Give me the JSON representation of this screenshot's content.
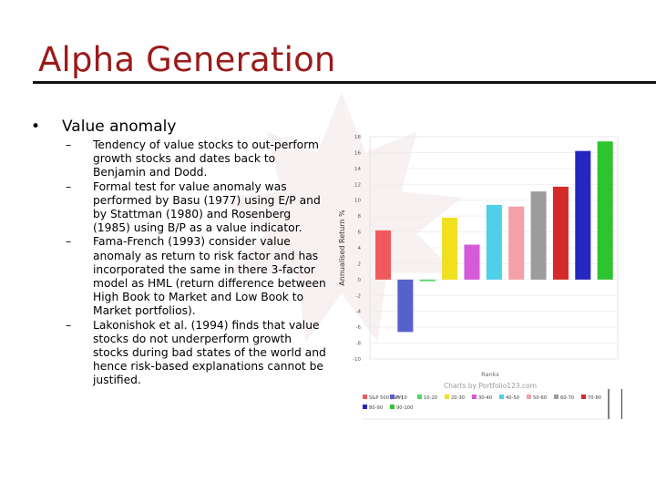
{
  "slide": {
    "title": "Alpha Generation",
    "bullet": "Value anomaly",
    "sub_points": [
      "Tendency of value stocks to out-perform growth stocks and dates back to Benjamin and Dodd.",
      "Formal test for value anomaly was performed by Basu (1977) using E/P and by Stattman (1980) and Rosenberg (1985) using B/P as a value indicator.",
      "Fama-French (1993) consider value anomaly as return to risk factor and has incorporated the same in there 3-factor model as HML (return difference between High Book to Market and Low Book to Market portfolios).",
      "Lakonishok et al. (1994) finds that value stocks do not underperform growth stocks during bad states of the world and hence risk-based explanations cannot be justified."
    ]
  },
  "chart_data": {
    "type": "bar",
    "title": "",
    "xlabel": "Ranks",
    "ylabel": "Annualised Return %",
    "ylim": [
      -10,
      18
    ],
    "y_ticks": [
      18,
      16,
      14,
      12,
      10,
      8,
      6,
      4,
      2,
      0,
      -2,
      -4,
      -6,
      -8,
      -10
    ],
    "categories": [
      "S&P 500 (SPY)",
      "0-10",
      "10-20",
      "20-30",
      "30-40",
      "40-50",
      "50-60",
      "60-70",
      "70-80",
      "80-90",
      "90-100"
    ],
    "values": [
      6.2,
      -6.6,
      -0.2,
      7.8,
      4.4,
      9.4,
      9.2,
      11.1,
      11.7,
      16.2,
      17.4
    ],
    "colors": [
      "#f05a5a",
      "#5661cc",
      "#4cd964",
      "#f0e020",
      "#d65bd6",
      "#4fd0e8",
      "#f4a0a8",
      "#9c9c9c",
      "#d42a2a",
      "#2626c0",
      "#2fc42f"
    ],
    "legend_position": "bottom",
    "watermark_text": "Charts by Portfolio123.com",
    "grid": true
  }
}
